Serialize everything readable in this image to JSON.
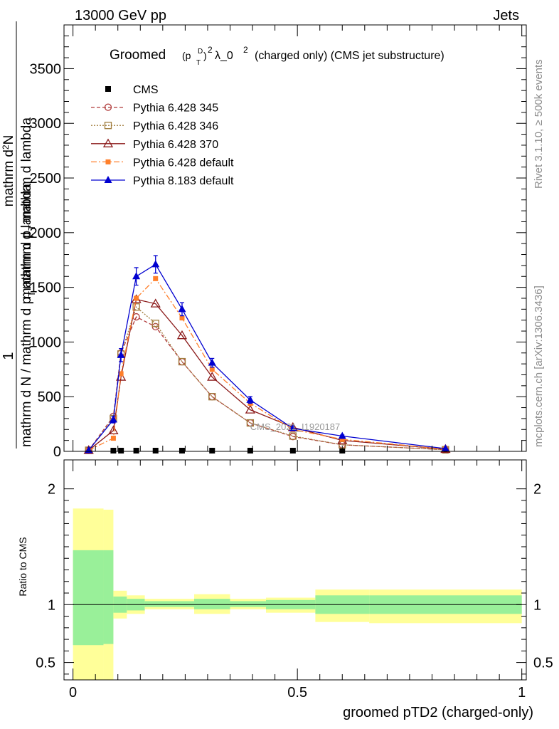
{
  "header": {
    "energy_label": "13000 GeV pp",
    "process_label": "Jets"
  },
  "side_labels": {
    "rivet": "Rivet 3.1.10, ≥ 500k events",
    "mcplots": "mcplots.cern.ch [arXiv:1306.3436]"
  },
  "watermark": "CMS_2021_I1920187",
  "colors": {
    "cms": "#000000",
    "p345": "#b03a3a",
    "p346": "#a07c3c",
    "p370": "#8b1a1a",
    "p6def": "#ff7f2a",
    "p8def": "#0000d0",
    "band_inner": "#99f099",
    "band_outer": "#ffff99"
  },
  "chart_data": [
    {
      "type": "line",
      "title": "Groomed (p_T^D)^2 λ_0^2 (charged only) (CMS jet substructure)",
      "title_parts": {
        "prefix": "Groomed",
        "symbol_p": "(p",
        "sup_d": "D",
        "sub_t": "T",
        "close": ")",
        "sup_2": "2",
        "lambda": "λ_0",
        "lambda_sup": "2",
        "suffix": "(charged only) (CMS jet substructure)"
      },
      "ylabel_lines": [
        "mathrm d N / mathrm d p_T mathrm d lambda",
        "1",
        "mathrm dN",
        "mathrm d p_T mathrm d lambda"
      ],
      "ylabel_parts": {
        "numer": "1",
        "denom": "mathrm d N / mathrm d p",
        "denom_sub": "T",
        "denom_tail": "mathrm d lambda",
        "frac2_numer": "mathrm d",
        "frac2_numer_sup": "2",
        "frac2_numer_tail": "N",
        "frac2_denom": "mathrm d p",
        "frac2_denom_sub": "T",
        "frac2_denom_tail": "mathrm d lambda"
      },
      "xlim": [
        -0.02,
        1.01
      ],
      "ylim": [
        0,
        3900
      ],
      "yticks": [
        0,
        500,
        1000,
        1500,
        2000,
        2500,
        3000,
        3500
      ],
      "ytick_labels": [
        "0",
        "500",
        "1000",
        "1500",
        "2000",
        "2500",
        "3000",
        "3500"
      ],
      "legend": [
        {
          "key": "cms",
          "label": "CMS"
        },
        {
          "key": "p345",
          "label": "Pythia 6.428 345"
        },
        {
          "key": "p346",
          "label": "Pythia 6.428 346"
        },
        {
          "key": "p370",
          "label": "Pythia 6.428 370"
        },
        {
          "key": "p6def",
          "label": "Pythia 6.428 default"
        },
        {
          "key": "p8def",
          "label": "Pythia 8.183 default"
        }
      ],
      "series": [
        {
          "key": "cms",
          "name": "CMS",
          "x": [
            0.09,
            0.107,
            0.141,
            0.184,
            0.243,
            0.31,
            0.395,
            0.49,
            0.6,
            0.83
          ],
          "y": [
            0,
            0,
            0,
            0,
            0,
            0,
            0,
            0,
            0,
            0
          ]
        },
        {
          "key": "p345",
          "name": "Pythia 6.428 345",
          "x": [
            0.035,
            0.09,
            0.107,
            0.141,
            0.184,
            0.243,
            0.31,
            0.395,
            0.49,
            0.6,
            0.83
          ],
          "y": [
            10,
            320,
            900,
            1230,
            1140,
            820,
            500,
            260,
            135,
            60,
            15
          ]
        },
        {
          "key": "p346",
          "name": "Pythia 6.428 346",
          "x": [
            0.035,
            0.09,
            0.107,
            0.141,
            0.184,
            0.243,
            0.31,
            0.395,
            0.49,
            0.6,
            0.83
          ],
          "y": [
            10,
            300,
            890,
            1320,
            1170,
            820,
            500,
            260,
            140,
            60,
            15
          ]
        },
        {
          "key": "p370",
          "name": "Pythia 6.428 370",
          "x": [
            0.035,
            0.09,
            0.107,
            0.141,
            0.184,
            0.243,
            0.31,
            0.395,
            0.49,
            0.6,
            0.83
          ],
          "y": [
            10,
            190,
            680,
            1390,
            1350,
            1060,
            680,
            380,
            220,
            100,
            20
          ]
        },
        {
          "key": "p6def",
          "name": "Pythia 6.428 default",
          "x": [
            0.035,
            0.09,
            0.107,
            0.141,
            0.184,
            0.243,
            0.31,
            0.395,
            0.49,
            0.6,
            0.83
          ],
          "y": [
            10,
            120,
            710,
            1400,
            1580,
            1220,
            750,
            440,
            200,
            110,
            20
          ]
        },
        {
          "key": "p8def",
          "name": "Pythia 8.183 default",
          "x": [
            0.035,
            0.09,
            0.107,
            0.141,
            0.184,
            0.243,
            0.31,
            0.395,
            0.49,
            0.6,
            0.83
          ],
          "y": [
            10,
            290,
            880,
            1600,
            1710,
            1300,
            810,
            470,
            210,
            140,
            25
          ],
          "err": [
            0,
            30,
            60,
            80,
            80,
            60,
            40,
            30,
            15,
            10,
            5
          ]
        }
      ]
    },
    {
      "type": "area",
      "ylabel": "Ratio to CMS",
      "xlabel": "groomed pTD2 (charged-only)",
      "xlim": [
        -0.02,
        1.01
      ],
      "ylim": [
        0.35,
        2.25
      ],
      "yticks": [
        0.5,
        1,
        2
      ],
      "ytick_labels": [
        "0.5",
        "1",
        "2"
      ],
      "xticks": [
        0,
        0.5,
        1
      ],
      "xtick_labels": [
        "0",
        "0.5",
        "1"
      ],
      "reference": 1,
      "bins": [
        {
          "x0": 0.0,
          "x1": 0.068,
          "in_lo": 0.65,
          "in_hi": 1.47,
          "out_lo": 0.35,
          "out_hi": 1.83
        },
        {
          "x0": 0.068,
          "x1": 0.09,
          "in_lo": 0.66,
          "in_hi": 1.47,
          "out_lo": 0.35,
          "out_hi": 1.82
        },
        {
          "x0": 0.09,
          "x1": 0.12,
          "in_lo": 0.93,
          "in_hi": 1.07,
          "out_lo": 0.88,
          "out_hi": 1.12
        },
        {
          "x0": 0.12,
          "x1": 0.16,
          "in_lo": 0.95,
          "in_hi": 1.05,
          "out_lo": 0.92,
          "out_hi": 1.08
        },
        {
          "x0": 0.16,
          "x1": 0.27,
          "in_lo": 0.98,
          "in_hi": 1.03,
          "out_lo": 0.96,
          "out_hi": 1.05
        },
        {
          "x0": 0.27,
          "x1": 0.35,
          "in_lo": 0.96,
          "in_hi": 1.05,
          "out_lo": 0.92,
          "out_hi": 1.09
        },
        {
          "x0": 0.35,
          "x1": 0.43,
          "in_lo": 0.98,
          "in_hi": 1.03,
          "out_lo": 0.96,
          "out_hi": 1.05
        },
        {
          "x0": 0.43,
          "x1": 0.54,
          "in_lo": 0.96,
          "in_hi": 1.04,
          "out_lo": 0.93,
          "out_hi": 1.06
        },
        {
          "x0": 0.54,
          "x1": 0.66,
          "in_lo": 0.92,
          "in_hi": 1.08,
          "out_lo": 0.85,
          "out_hi": 1.13
        },
        {
          "x0": 0.66,
          "x1": 1.0,
          "in_lo": 0.92,
          "in_hi": 1.08,
          "out_lo": 0.84,
          "out_hi": 1.13
        }
      ]
    }
  ]
}
